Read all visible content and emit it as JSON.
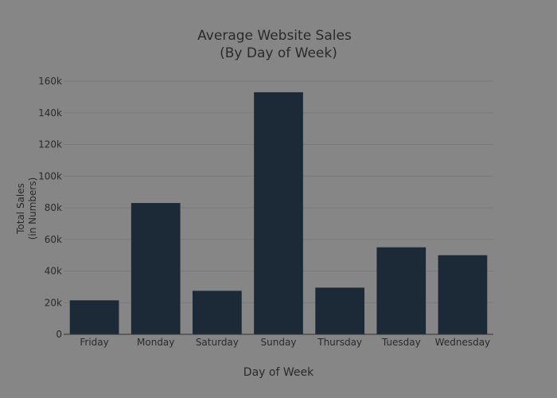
{
  "chart_data": {
    "type": "bar",
    "title_line1": "Average Website Sales",
    "title_line2": "(By Day of Week)",
    "xlabel": "Day of Week",
    "ylabel_line1": "Total Sales",
    "ylabel_line2": "(in Numbers)",
    "categories": [
      "Friday",
      "Monday",
      "Saturday",
      "Sunday",
      "Thursday",
      "Tuesday",
      "Wednesday"
    ],
    "values": [
      21500,
      83000,
      27500,
      153000,
      29500,
      55000,
      50000
    ],
    "ylim": [
      0,
      160000
    ],
    "yticks": [
      0,
      20000,
      40000,
      60000,
      80000,
      100000,
      120000,
      140000,
      160000
    ],
    "ytick_labels": [
      "0",
      "20k",
      "40k",
      "60k",
      "80k",
      "100k",
      "120k",
      "140k",
      "160k"
    ],
    "grid": true,
    "colors": {
      "background": "#868686",
      "bar": "#1c2a38",
      "text": "#2a2a2a"
    }
  }
}
